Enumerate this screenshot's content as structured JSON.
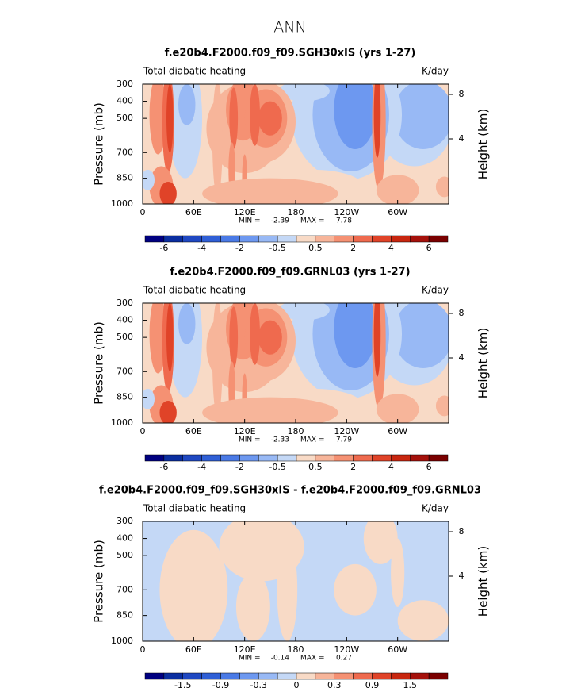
{
  "title": "ANN",
  "chart_data": [
    {
      "type": "contour",
      "title": "f.e20b4.F2000.f09_f09.SGH30xIS (yrs 1-27)",
      "left_label": "Total diabatic heating",
      "right_label": "K/day",
      "ylabel": "Pressure (mb)",
      "y2label": "Height (km)",
      "xlim": [
        0,
        360
      ],
      "xticks": [
        0,
        {
          "value": 60,
          "label": "60E"
        },
        {
          "value": 120,
          "label": "120E"
        },
        180,
        {
          "value": 240,
          "label": "120W"
        },
        {
          "value": 300,
          "label": "60W"
        }
      ],
      "ylim": [
        1000,
        300
      ],
      "yticks": [
        300,
        400,
        500,
        700,
        850,
        1000
      ],
      "y2lim": [
        -1.86,
        8.93
      ],
      "y2ticks": [
        8,
        4
      ],
      "min_label": "MIN =",
      "min": -2.39,
      "max_label": "MAX =",
      "max": 7.78,
      "colorbar": {
        "colors": [
          "#000080",
          "#0a2ea0",
          "#1f48c2",
          "#2f5fd6",
          "#4a7ae6",
          "#6d98f0",
          "#98b9f5",
          "#c4d8f6",
          "#f8dac6",
          "#f7b59a",
          "#f59173",
          "#ef6a4e",
          "#e04328",
          "#c8260f",
          "#a5110b",
          "#7a0000"
        ],
        "levels": [
          -6,
          null,
          -4,
          null,
          -2,
          null,
          -0.5,
          null,
          0.5,
          null,
          2,
          null,
          4,
          null,
          6
        ]
      }
    },
    {
      "type": "contour",
      "title": "f.e20b4.F2000.f09_f09.GRNL03 (yrs 1-27)",
      "left_label": "Total diabatic heating",
      "right_label": "K/day",
      "ylabel": "Pressure (mb)",
      "y2label": "Height (km)",
      "xlim": [
        0,
        360
      ],
      "xticks": [
        0,
        {
          "value": 60,
          "label": "60E"
        },
        {
          "value": 120,
          "label": "120E"
        },
        180,
        {
          "value": 240,
          "label": "120W"
        },
        {
          "value": 300,
          "label": "60W"
        }
      ],
      "ylim": [
        1000,
        300
      ],
      "yticks": [
        300,
        400,
        500,
        700,
        850,
        1000
      ],
      "y2lim": [
        -1.86,
        8.93
      ],
      "y2ticks": [
        8,
        4
      ],
      "min_label": "MIN =",
      "min": -2.33,
      "max_label": "MAX =",
      "max": 7.79,
      "colorbar": {
        "colors": [
          "#000080",
          "#0a2ea0",
          "#1f48c2",
          "#2f5fd6",
          "#4a7ae6",
          "#6d98f0",
          "#98b9f5",
          "#c4d8f6",
          "#f8dac6",
          "#f7b59a",
          "#f59173",
          "#ef6a4e",
          "#e04328",
          "#c8260f",
          "#a5110b",
          "#7a0000"
        ],
        "levels": [
          -6,
          null,
          -4,
          null,
          -2,
          null,
          -0.5,
          null,
          0.5,
          null,
          2,
          null,
          4,
          null,
          6
        ]
      }
    },
    {
      "type": "contour",
      "title": "f.e20b4.F2000.f09_f09.SGH30xIS - f.e20b4.F2000.f09_f09.GRNL03",
      "left_label": "Total diabatic heating",
      "right_label": "K/day",
      "ylabel": "Pressure (mb)",
      "y2label": "Height (km)",
      "xlim": [
        0,
        360
      ],
      "xticks": [
        0,
        {
          "value": 60,
          "label": "60E"
        },
        {
          "value": 120,
          "label": "120E"
        },
        180,
        {
          "value": 240,
          "label": "120W"
        },
        {
          "value": 300,
          "label": "60W"
        }
      ],
      "ylim": [
        1000,
        300
      ],
      "yticks": [
        300,
        400,
        500,
        700,
        850,
        1000
      ],
      "y2lim": [
        -1.86,
        8.93
      ],
      "y2ticks": [
        8,
        4
      ],
      "min_label": "MIN =",
      "min": -0.14,
      "max_label": "MAX =",
      "max": 0.27,
      "colorbar": {
        "colors": [
          "#000080",
          "#0a2ea0",
          "#1f48c2",
          "#2f5fd6",
          "#4a7ae6",
          "#6d98f0",
          "#98b9f5",
          "#c4d8f6",
          "#f8dac6",
          "#f7b59a",
          "#f59173",
          "#ef6a4e",
          "#e04328",
          "#c8260f",
          "#a5110b",
          "#7a0000"
        ],
        "levels": [
          null,
          -1.5,
          null,
          -0.9,
          null,
          -0.3,
          null,
          0,
          null,
          0.3,
          null,
          0.9,
          null,
          1.5,
          null
        ]
      }
    }
  ]
}
